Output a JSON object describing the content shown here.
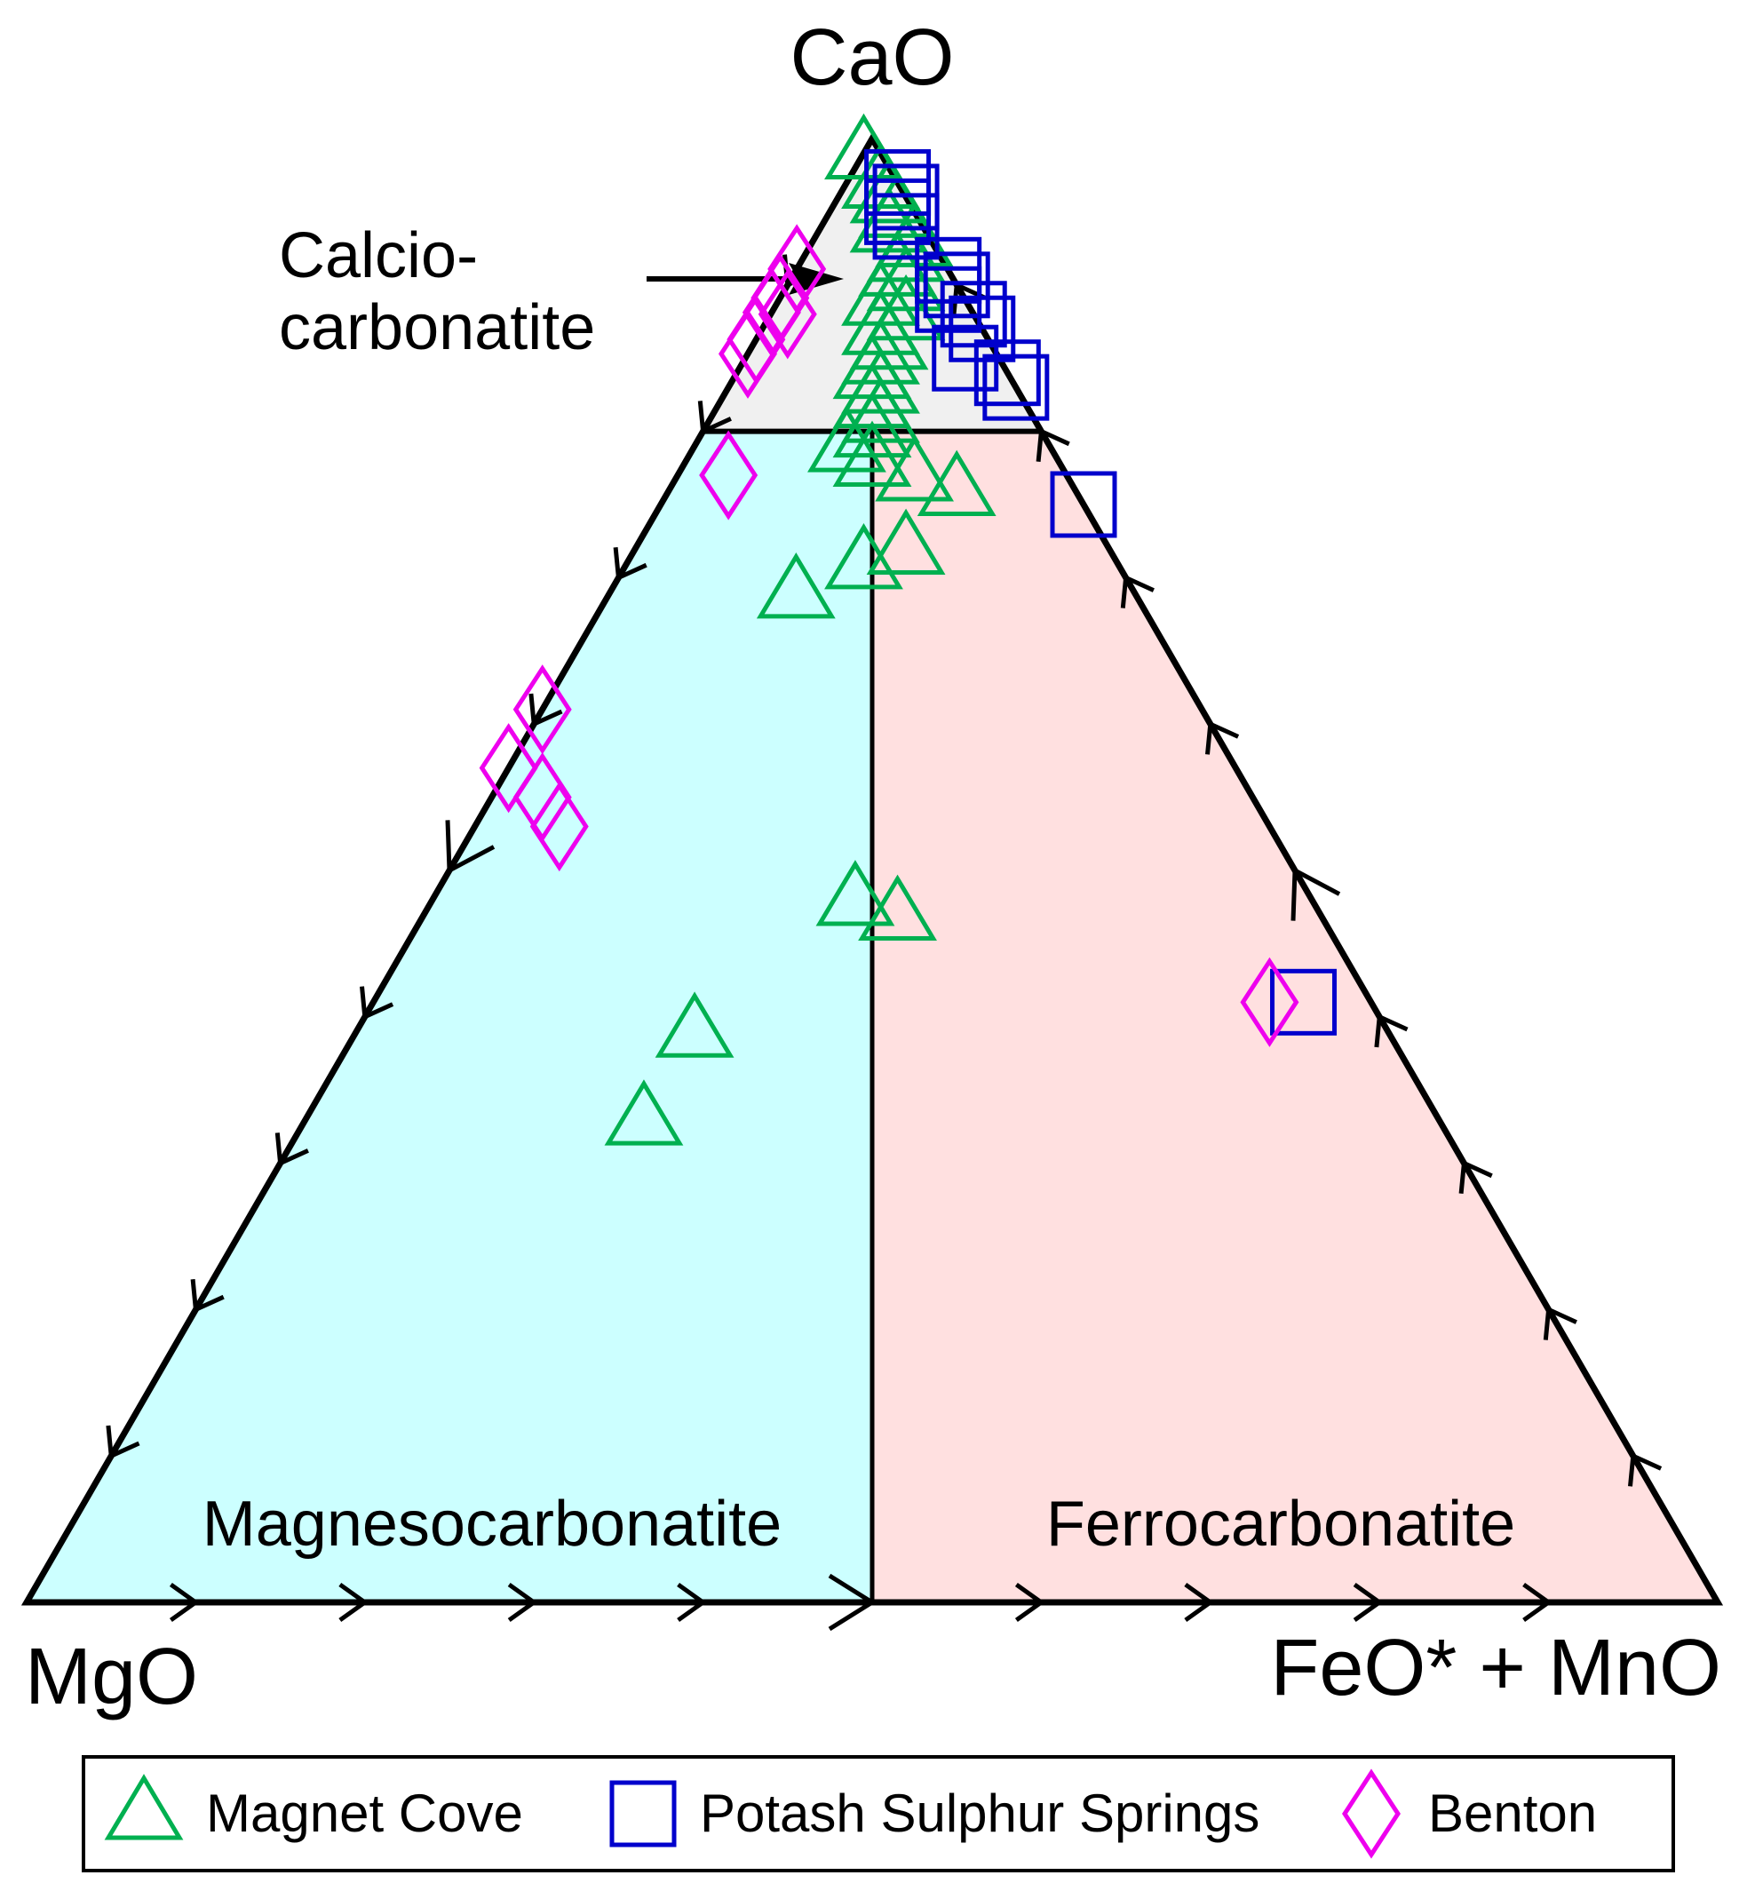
{
  "chart_data": {
    "type": "ternary scatter",
    "apices": {
      "top": "CaO",
      "left": "MgO",
      "right": "FeO* + MnO"
    },
    "fields": [
      {
        "name": "Calcio-carbonatite",
        "label_lines": [
          "Calcio-",
          "carbonatite"
        ],
        "color": "#f0f0f0",
        "definition": "CaO > 80%"
      },
      {
        "name": "Magnesocarbonatite",
        "label": "Magnesocarbonatite",
        "color": "#ccffff",
        "definition": "MgO > FeO* + MnO"
      },
      {
        "name": "Ferrocarbonatite",
        "label": "Ferrocarbonatite",
        "color": "#ffe0e0",
        "definition": "FeO* + MnO > MgO"
      }
    ],
    "grid_step": 10,
    "series": [
      {
        "name": "Magnet Cove",
        "marker": "triangle",
        "color": "#00b050",
        "points": [
          [
            99,
            1,
            0
          ],
          [
            97,
            1,
            2
          ],
          [
            96,
            1,
            3
          ],
          [
            95,
            1,
            4
          ],
          [
            94,
            2,
            4
          ],
          [
            93,
            1,
            6
          ],
          [
            92,
            2,
            6
          ],
          [
            91,
            3,
            6
          ],
          [
            90,
            3,
            7
          ],
          [
            89,
            5,
            6
          ],
          [
            88,
            4,
            8
          ],
          [
            87,
            6,
            7
          ],
          [
            86,
            6,
            8
          ],
          [
            85,
            7,
            8
          ],
          [
            84,
            8,
            8
          ],
          [
            83,
            8,
            9
          ],
          [
            82,
            9,
            9
          ],
          [
            81,
            9,
            10
          ],
          [
            80,
            10,
            10
          ],
          [
            79,
            12,
            9
          ],
          [
            78,
            11,
            11
          ],
          [
            77,
            9,
            14
          ],
          [
            76,
            7,
            17
          ],
          [
            72,
            12,
            16
          ],
          [
            71,
            15,
            14
          ],
          [
            69,
            20,
            11
          ],
          [
            48,
            27,
            25
          ],
          [
            47,
            25,
            28
          ],
          [
            39,
            41,
            20
          ],
          [
            33,
            47,
            20
          ]
        ]
      },
      {
        "name": "Potash Sulphur Springs",
        "marker": "square",
        "color": "#0000cc",
        "points": [
          [
            97,
            0,
            3
          ],
          [
            96,
            0,
            4
          ],
          [
            95,
            1,
            4
          ],
          [
            94,
            1,
            5
          ],
          [
            91,
            0,
            9
          ],
          [
            90,
            0,
            10
          ],
          [
            89,
            1,
            10
          ],
          [
            88,
            0,
            12
          ],
          [
            87,
            0,
            13
          ],
          [
            85,
            2,
            13
          ],
          [
            84,
            0,
            16
          ],
          [
            83,
            0,
            17
          ],
          [
            75,
            0,
            25
          ],
          [
            41,
            4,
            55
          ]
        ]
      },
      {
        "name": "Benton",
        "marker": "diamond",
        "color": "#ee00ee",
        "points": [
          [
            92,
            9,
            0
          ],
          [
            90,
            11,
            0
          ],
          [
            89,
            12,
            0
          ],
          [
            88,
            14,
            0
          ],
          [
            87,
            15,
            0
          ],
          [
            88,
            11,
            1
          ],
          [
            77,
            20,
            3
          ],
          [
            61,
            39,
            0
          ],
          [
            57,
            43,
            0
          ],
          [
            55,
            42,
            3
          ],
          [
            53,
            42,
            5
          ],
          [
            41,
            6,
            53
          ]
        ]
      }
    ],
    "legend": {
      "position": "bottom",
      "entries": [
        "Magnet Cove",
        "Potash Sulphur Springs",
        "Benton"
      ]
    }
  }
}
